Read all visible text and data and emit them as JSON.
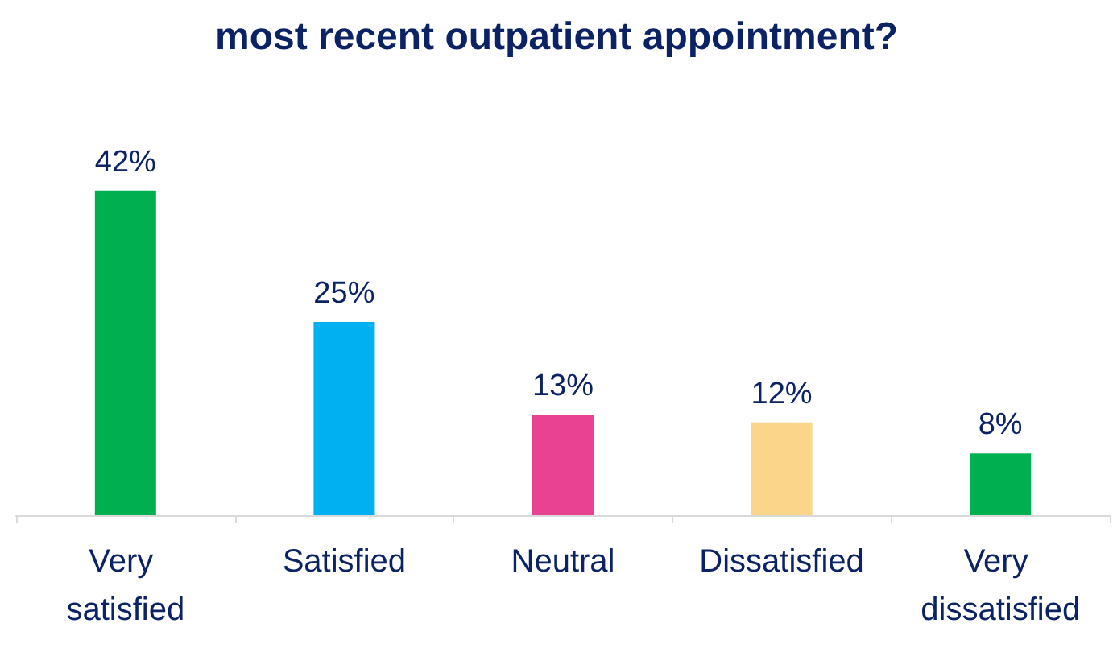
{
  "chart_data": {
    "type": "bar",
    "title": "most recent outpatient appointment?",
    "categories": [
      "Very satisfied",
      "Satisfied",
      "Neutral",
      "Dissatisfied",
      "Very dissatisfied"
    ],
    "values": [
      42,
      25,
      13,
      12,
      8
    ],
    "colors": [
      "#00b050",
      "#00b0f0",
      "#e84393",
      "#fad58a",
      "#00b050"
    ],
    "value_labels": [
      "42%",
      "25%",
      "13%",
      "12%",
      "8%"
    ]
  }
}
